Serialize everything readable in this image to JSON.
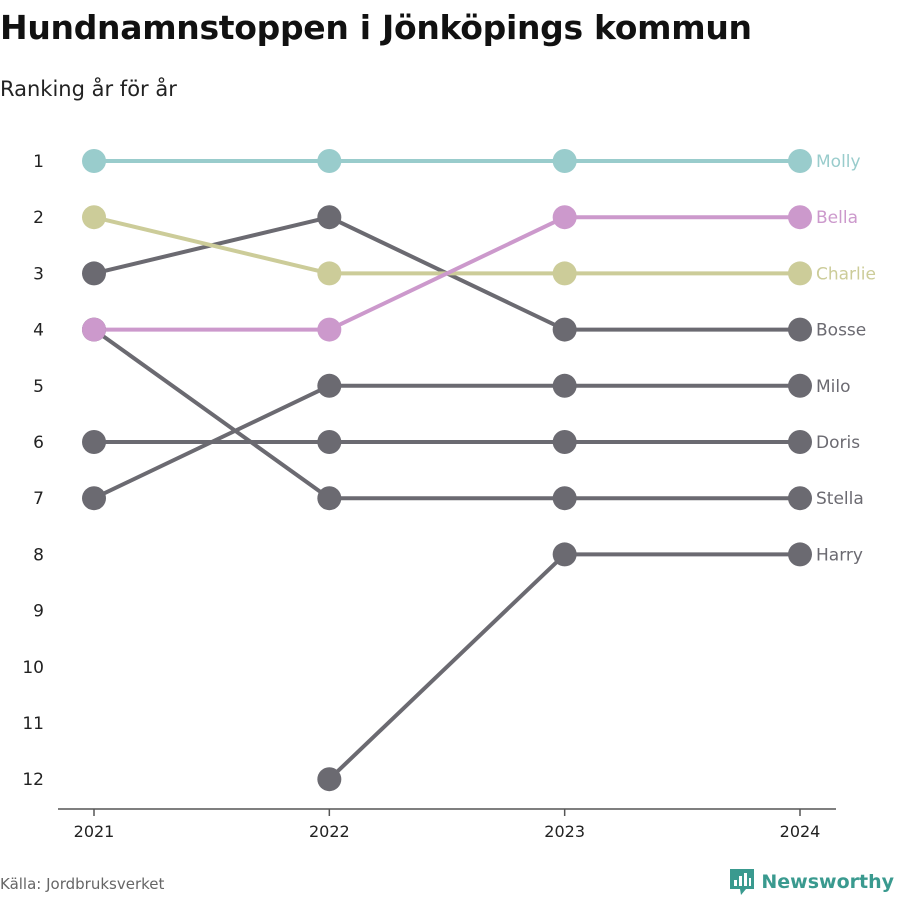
{
  "title": "Hundnamnstoppen i Jönköpings kommun",
  "subtitle": "Ranking år för år",
  "source": "Källa: Jordbruksverket",
  "brand": "Newsworthy",
  "colors": {
    "Molly": "#99cccc",
    "Bella": "#cc99cc",
    "Charlie": "#cccc99",
    "other": "#6b6a71",
    "axis": "#555555",
    "brand": "#3a9a8f"
  },
  "chart_data": {
    "type": "line",
    "x": [
      2021,
      2022,
      2023,
      2024
    ],
    "yticks": [
      1,
      2,
      3,
      4,
      5,
      6,
      7,
      8,
      9,
      10,
      11,
      12
    ],
    "ylim": [
      1,
      12
    ],
    "y_inverted": true,
    "grid": false,
    "legend": "end-labels",
    "series": [
      {
        "name": "Harry",
        "values": [
          null,
          12,
          8,
          8
        ]
      },
      {
        "name": "Stella",
        "values": [
          4,
          7,
          7,
          7
        ]
      },
      {
        "name": "Doris",
        "values": [
          6,
          6,
          6,
          6
        ]
      },
      {
        "name": "Milo",
        "values": [
          7,
          5,
          5,
          5
        ]
      },
      {
        "name": "Bosse",
        "values": [
          3,
          2,
          4,
          4
        ]
      },
      {
        "name": "Charlie",
        "values": [
          2,
          3,
          3,
          3
        ]
      },
      {
        "name": "Bella",
        "values": [
          4,
          4,
          2,
          2
        ]
      },
      {
        "name": "Molly",
        "values": [
          1,
          1,
          1,
          1
        ]
      }
    ]
  }
}
